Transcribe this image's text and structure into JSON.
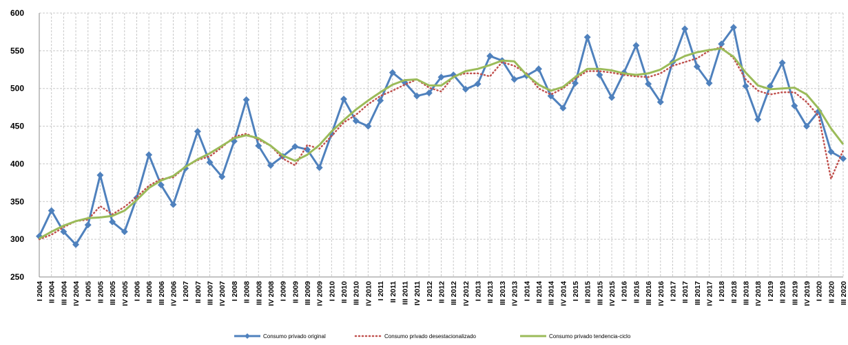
{
  "chart_data": {
    "type": "line",
    "categories": [
      "I 2004",
      "II 2004",
      "III 2004",
      "IV 2004",
      "I 2005",
      "II 2005",
      "III 2005",
      "IV 2005",
      "I 2006",
      "II 2006",
      "III 2006",
      "IV 2006",
      "I 2007",
      "II 2007",
      "III 2007",
      "IV 2007",
      "I 2008",
      "II 2008",
      "III 2008",
      "IV 2008",
      "I 2009",
      "II 2009",
      "III 2009",
      "IV 2009",
      "I 2010",
      "II 2010",
      "III 2010",
      "IV 2010",
      "I 2011",
      "II 2011",
      "III 2011",
      "IV 2011",
      "I 2012",
      "II 2012",
      "III 2012",
      "IV 2012",
      "I 2013",
      "II 2013",
      "III 2013",
      "IV 2013",
      "I 2014",
      "II 2014",
      "III 2014",
      "IV 2014",
      "I 2015",
      "II 2015",
      "III 2015",
      "IV 2015",
      "I 2016",
      "II 2016",
      "III 2016",
      "IV 2016",
      "I 2017",
      "II 2017",
      "III 2017",
      "IV 2017",
      "I 2018",
      "II 2018",
      "III 2018",
      "IV 2018",
      "I 2019",
      "II 2019",
      "III 2019",
      "IV 2019",
      "I 2020",
      "II 2020",
      "III 2020"
    ],
    "series": [
      {
        "name": "Consumo privado original",
        "color": "#4F81BD",
        "style": "marker",
        "values": [
          304,
          338,
          310,
          293,
          319,
          385,
          323,
          310,
          355,
          412,
          372,
          346,
          394,
          443,
          402,
          383,
          430,
          485,
          424,
          398,
          410,
          423,
          419,
          395,
          440,
          486,
          457,
          450,
          484,
          521,
          508,
          490,
          494,
          515,
          518,
          499,
          506,
          543,
          537,
          512,
          517,
          526,
          490,
          474,
          507,
          568,
          518,
          488,
          521,
          557,
          506,
          482,
          535,
          579,
          529,
          507,
          559,
          581,
          503,
          459,
          503,
          534,
          477,
          450,
          470,
          416,
          407
        ]
      },
      {
        "name": "Consumo privado desestacionalizado",
        "color": "#C0504D",
        "style": "dotted",
        "values": [
          300,
          306,
          316,
          324,
          326,
          344,
          333,
          343,
          356,
          371,
          380,
          382,
          396,
          405,
          410,
          422,
          436,
          440,
          432,
          424,
          407,
          398,
          425,
          420,
          437,
          455,
          465,
          479,
          490,
          497,
          505,
          512,
          501,
          496,
          516,
          520,
          520,
          516,
          535,
          530,
          520,
          500,
          492,
          500,
          513,
          523,
          523,
          521,
          518,
          516,
          515,
          520,
          530,
          535,
          540,
          550,
          555,
          540,
          512,
          497,
          492,
          495,
          495,
          482,
          463,
          380,
          418
        ]
      },
      {
        "name": "Consumo privado tendencia-ciclo",
        "color": "#9BBB59",
        "style": "solid",
        "values": [
          301,
          310,
          318,
          324,
          328,
          329,
          331,
          338,
          352,
          368,
          378,
          384,
          396,
          406,
          414,
          424,
          434,
          438,
          434,
          424,
          411,
          404,
          412,
          425,
          443,
          458,
          472,
          484,
          495,
          505,
          511,
          512,
          504,
          504,
          515,
          523,
          526,
          531,
          537,
          536,
          518,
          505,
          497,
          502,
          515,
          526,
          526,
          524,
          520,
          518,
          520,
          525,
          535,
          543,
          548,
          551,
          553,
          542,
          521,
          504,
          499,
          500,
          501,
          492,
          473,
          447,
          426
        ]
      }
    ],
    "ylim": [
      250,
      600
    ],
    "yticks": [
      250,
      300,
      350,
      400,
      450,
      500,
      550,
      600
    ],
    "grid": true
  }
}
